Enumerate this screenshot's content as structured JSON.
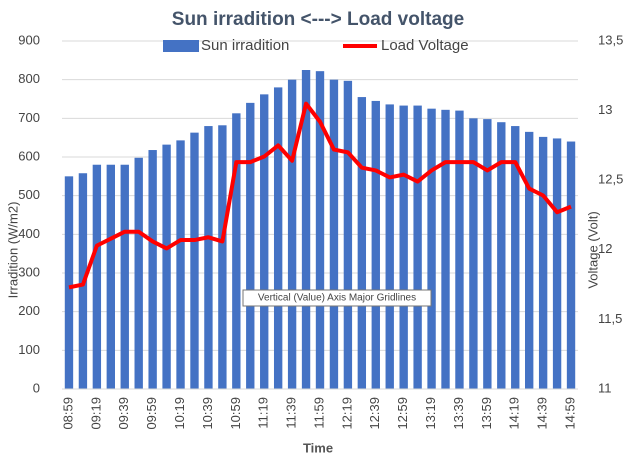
{
  "chart_data": {
    "type": "combo",
    "title": "Sun irradition <---> Load voltage",
    "x_label": "Time",
    "y_label": "Irradition (W/m2)",
    "y2_label": "Voltage (Volt)",
    "tooltip": "Vertical (Value) Axis Major Gridlines",
    "categories": [
      "08:59",
      null,
      "09:19",
      null,
      "09:39",
      null,
      "09:59",
      null,
      "10:19",
      null,
      "10:39",
      null,
      "10:59",
      null,
      "11:19",
      null,
      "11:39",
      null,
      "11:59",
      null,
      "12:19",
      null,
      "12:39",
      null,
      "12:59",
      null,
      "13:19",
      null,
      "13:39",
      null,
      "13:59",
      null,
      "14:19",
      null,
      "14:39",
      null,
      "14:59"
    ],
    "series": [
      {
        "name": "Sun irradition",
        "type": "bar",
        "color": "#4472c4",
        "axis": "y",
        "values": [
          550,
          558,
          580,
          580,
          580,
          598,
          618,
          632,
          643,
          663,
          680,
          682,
          713,
          740,
          762,
          780,
          800,
          825,
          822,
          800,
          797,
          755,
          745,
          736,
          733,
          733,
          725,
          722,
          720,
          700,
          698,
          690,
          680,
          665,
          652,
          648,
          640
        ]
      },
      {
        "name": "Load Voltage",
        "type": "line",
        "color": "#ff0000",
        "axis": "y2",
        "values": [
          11.73,
          11.75,
          12.03,
          12.08,
          12.13,
          12.13,
          12.06,
          12.01,
          12.07,
          12.07,
          12.09,
          12.06,
          12.63,
          12.63,
          12.67,
          12.75,
          12.64,
          13.05,
          12.92,
          12.72,
          12.7,
          12.59,
          12.57,
          12.52,
          12.54,
          12.49,
          12.57,
          12.63,
          12.63,
          12.63,
          12.57,
          12.63,
          12.63,
          12.44,
          12.39,
          12.27,
          12.31
        ]
      }
    ],
    "ylim": [
      0,
      900
    ],
    "yticks": [
      0,
      100,
      200,
      300,
      400,
      500,
      600,
      700,
      800,
      900
    ],
    "y2lim": [
      11,
      13.5
    ],
    "y2ticks": [
      11,
      {
        "value": 11.5,
        "label": "11,5"
      },
      12,
      {
        "value": 12.5,
        "label": "12,5"
      },
      13,
      {
        "value": 13.5,
        "label": "13,5"
      }
    ],
    "grid": true,
    "legend": "top"
  }
}
